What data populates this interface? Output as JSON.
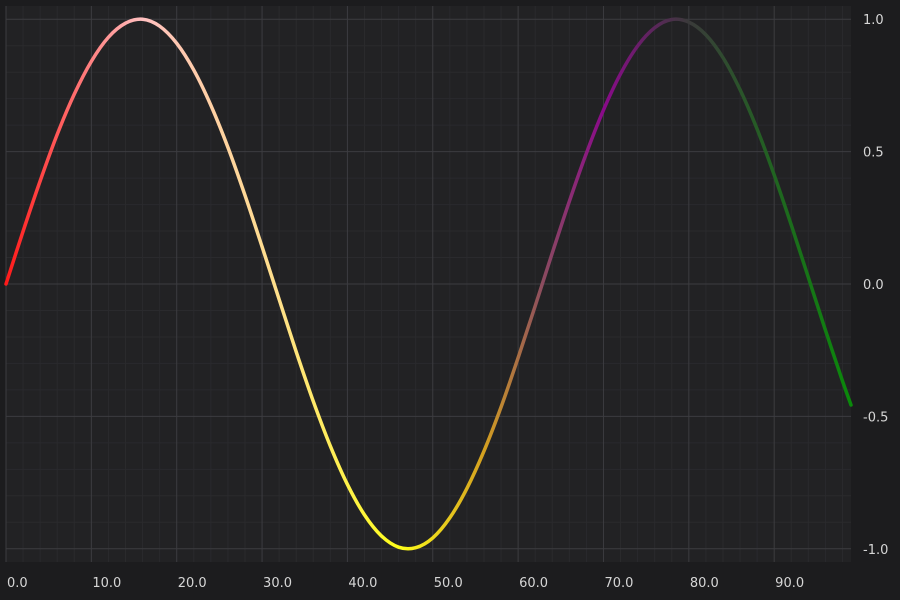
{
  "chart_data": {
    "type": "line",
    "title": "",
    "xlabel": "",
    "ylabel": "",
    "xlim": [
      0,
      99
    ],
    "ylim": [
      -1.05,
      1.05
    ],
    "x_ticks": [
      0,
      10,
      20,
      30,
      40,
      50,
      60,
      70,
      80,
      90
    ],
    "x_tick_labels": [
      "0.0",
      "10.0",
      "20.0",
      "30.0",
      "40.0",
      "50.0",
      "60.0",
      "70.0",
      "80.0",
      "90.0"
    ],
    "y_ticks": [
      1.0,
      0.5,
      0.0,
      -0.5,
      -1.0
    ],
    "y_tick_labels": [
      "1.0",
      "0.5",
      "0.0",
      "-0.5",
      "-1.0"
    ],
    "y_axis_side": "right",
    "grid": true,
    "legend": "none",
    "series": [
      {
        "x": [
          0,
          2,
          4,
          6,
          8,
          10,
          12,
          14,
          16,
          18,
          20,
          22,
          24,
          26,
          28,
          30,
          32,
          34,
          36,
          38,
          40,
          42,
          44,
          46,
          48,
          50,
          52,
          54,
          56,
          58,
          60,
          62,
          64,
          66,
          68,
          70,
          72,
          74,
          76,
          78,
          80,
          82,
          84,
          86,
          88,
          90,
          92,
          94,
          96,
          98,
          99
        ],
        "y": [
          0.0,
          0.199,
          0.389,
          0.565,
          0.717,
          0.841,
          0.932,
          0.985,
          1.0,
          0.974,
          0.909,
          0.808,
          0.675,
          0.516,
          0.335,
          0.141,
          -0.058,
          -0.256,
          -0.443,
          -0.612,
          -0.757,
          -0.872,
          -0.952,
          -0.994,
          -0.996,
          -0.959,
          -0.883,
          -0.772,
          -0.631,
          -0.465,
          -0.279,
          -0.083,
          0.117,
          0.312,
          0.494,
          0.657,
          0.794,
          0.899,
          0.968,
          0.999,
          0.989,
          0.941,
          0.855,
          0.734,
          0.585,
          0.412,
          0.223,
          0.025,
          -0.174,
          -0.366,
          -0.457
        ],
        "color_stops": [
          {
            "x": 0,
            "color": "#ff1a1a"
          },
          {
            "x": 16,
            "color": "#ffc0c0"
          },
          {
            "x": 32,
            "color": "#ffe08a"
          },
          {
            "x": 46,
            "color": "#ffff1a"
          },
          {
            "x": 56,
            "color": "#d4a020"
          },
          {
            "x": 63,
            "color": "#8a4a60"
          },
          {
            "x": 70,
            "color": "#8a0a8a"
          },
          {
            "x": 80,
            "color": "#3a3a3a"
          },
          {
            "x": 99,
            "color": "#0a8a0a"
          }
        ]
      }
    ]
  },
  "colors": {
    "background": "#1c1c1e",
    "plot_background": "#222224",
    "major_grid": "#3c3c40",
    "minor_grid": "#2a2a2d",
    "tick_text": "#d6d6d6"
  }
}
